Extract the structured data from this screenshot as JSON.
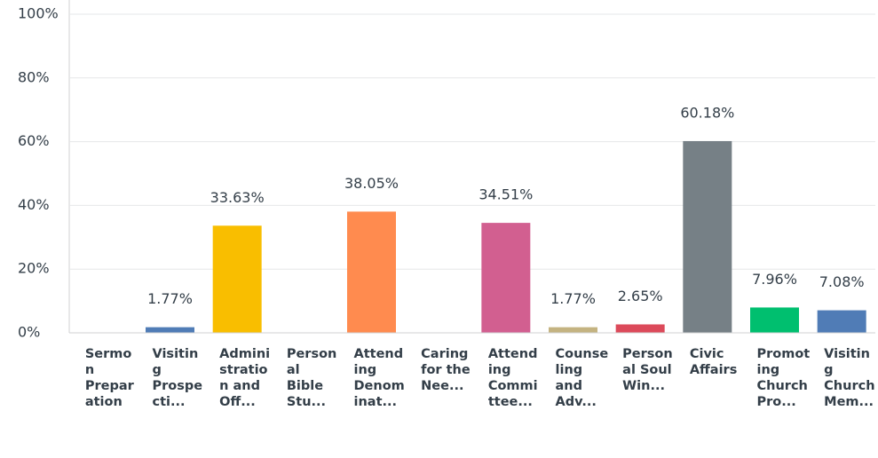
{
  "chart_data": {
    "type": "bar",
    "categories": [
      "Sermon Preparation",
      "Visiting Prospecti...",
      "Administration and Off...",
      "Personal Bible Stu...",
      "Attending Denominat...",
      "Caring for the Nee...",
      "Attending Committee...",
      "Counseling and Adv...",
      "Personal Soul Win...",
      "Civic Affairs",
      "Promoting Church Pro...",
      "Visiting Church Mem..."
    ],
    "values": [
      0,
      1.77,
      33.63,
      0,
      38.05,
      0,
      34.51,
      1.77,
      2.65,
      60.18,
      7.96,
      7.08
    ],
    "value_labels": [
      null,
      "1.77%",
      "33.63%",
      null,
      "38.05%",
      null,
      "34.51%",
      "1.77%",
      "2.65%",
      "60.18%",
      "7.96%",
      "7.08%"
    ],
    "colors": [
      "#00bf6f",
      "#507cb6",
      "#f9be00",
      "#6bc8cd",
      "#ff8b4f",
      "#7d5ba6",
      "#d25f90",
      "#c4b381",
      "#dc4a5a",
      "#768086",
      "#00bf6f",
      "#507cb6"
    ],
    "ylim": [
      0,
      100
    ],
    "yticks": [
      {
        "value": 0,
        "label": "0%"
      },
      {
        "value": 20,
        "label": "20%"
      },
      {
        "value": 40,
        "label": "40%"
      },
      {
        "value": 60,
        "label": "60%"
      },
      {
        "value": 80,
        "label": "80%"
      },
      {
        "value": 100,
        "label": "100%"
      }
    ],
    "grid": true
  }
}
